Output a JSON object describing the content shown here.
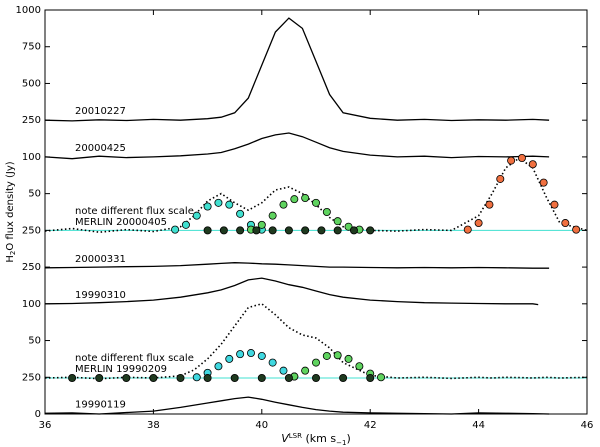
{
  "chart_data": {
    "type": "line",
    "xlabel": [
      "V",
      "LSR",
      " (km s",
      "−1",
      ")"
    ],
    "ylabel": [
      "H",
      "2",
      "O  flux density (Jy)"
    ],
    "xlim": [
      36,
      46
    ],
    "xticks": [
      36,
      38,
      40,
      42,
      44,
      46
    ],
    "ylim": [
      0,
      1100
    ],
    "yticks": [
      0,
      {
        "value": 100,
        "label": "250"
      },
      {
        "value": 200,
        "label": "50"
      },
      {
        "value": 300,
        "label": "100"
      },
      {
        "value": 400,
        "label": "250"
      },
      {
        "value": 500,
        "label": "250"
      },
      {
        "value": 600,
        "label": "50"
      },
      {
        "value": 700,
        "label": "100"
      },
      {
        "value": 800,
        "label": "250"
      },
      {
        "value": 900,
        "label": "500"
      },
      {
        "value": 1000,
        "label": "750"
      },
      {
        "value": 1100,
        "label": "1000"
      }
    ],
    "hlines": [
      {
        "value": 500,
        "color": "#40e0d0"
      },
      {
        "value": 98,
        "color": "#40e0d0"
      }
    ],
    "series": [
      {
        "name": "20010227",
        "color": "#000000",
        "style": "solid",
        "x": [
          36,
          36.5,
          37,
          37.5,
          38,
          38.5,
          39,
          39.25,
          39.5,
          39.75,
          40,
          40.25,
          40.5,
          40.75,
          41,
          41.25,
          41.5,
          42,
          42.5,
          43,
          43.5,
          44,
          44.5,
          45,
          45.3
        ],
        "values": [
          800,
          798,
          801,
          799,
          802,
          800,
          804,
          808,
          820,
          860,
          950,
          1040,
          1078,
          1050,
          960,
          870,
          820,
          805,
          800,
          802,
          799,
          801,
          800,
          802,
          800
        ]
      },
      {
        "name": "20000425",
        "color": "#000000",
        "style": "solid",
        "x": [
          36,
          36.5,
          37,
          37.5,
          38,
          38.5,
          39,
          39.25,
          39.5,
          39.75,
          40,
          40.25,
          40.5,
          40.75,
          41,
          41.25,
          41.5,
          42,
          42.5,
          43,
          43.5,
          44,
          44.5,
          45,
          45.3
        ],
        "values": [
          700,
          695,
          702,
          698,
          700,
          703,
          708,
          712,
          722,
          735,
          750,
          760,
          765,
          755,
          740,
          725,
          715,
          705,
          700,
          702,
          698,
          701,
          700,
          702,
          700
        ]
      },
      {
        "name": "MERLIN 20000405",
        "note": "note different flux scale",
        "color": "#000000",
        "style": "dotted",
        "x": [
          36,
          36.5,
          37,
          37.5,
          38,
          38.5,
          38.75,
          39,
          39.25,
          39.5,
          39.75,
          40,
          40.25,
          40.5,
          40.75,
          41,
          41.25,
          41.5,
          42,
          42.5,
          43,
          43.5,
          44,
          44.25,
          44.5,
          44.75,
          45,
          45.25,
          45.5,
          46
        ],
        "values": [
          498,
          505,
          495,
          502,
          497,
          510,
          540,
          580,
          600,
          575,
          555,
          575,
          610,
          618,
          600,
          570,
          535,
          510,
          500,
          498,
          502,
          500,
          540,
          600,
          670,
          697,
          670,
          590,
          520,
          500
        ]
      },
      {
        "name": "20000331",
        "color": "#000000",
        "style": "solid",
        "x": [
          36,
          36.5,
          37,
          37.5,
          38,
          38.5,
          39,
          39.25,
          39.5,
          39.75,
          40,
          40.25,
          40.5,
          40.75,
          41,
          41.25,
          41.5,
          42,
          42.5,
          43,
          43.5,
          44,
          44.5,
          45,
          45.3
        ],
        "values": [
          398,
          399,
          400,
          401,
          402,
          404,
          408,
          410,
          412,
          411,
          409,
          408,
          406,
          404,
          402,
          400,
          400,
          399,
          398,
          399,
          398,
          399,
          398,
          397,
          397
        ]
      },
      {
        "name": "19990310",
        "color": "#000000",
        "style": "solid",
        "x": [
          36,
          36.5,
          37,
          37.5,
          38,
          38.5,
          39,
          39.25,
          39.5,
          39.75,
          40,
          40.25,
          40.5,
          40.75,
          41,
          41.25,
          41.5,
          42,
          42.5,
          43,
          43.5,
          44,
          44.5,
          45,
          45.1
        ],
        "values": [
          300,
          301,
          303,
          306,
          310,
          318,
          330,
          338,
          350,
          365,
          370,
          362,
          352,
          345,
          335,
          325,
          318,
          310,
          306,
          303,
          302,
          301,
          300,
          300,
          298
        ]
      },
      {
        "name": "MERLIN 19990209",
        "note": "note different flux scale",
        "color": "#000000",
        "style": "dotted",
        "x": [
          36,
          36.5,
          37,
          37.5,
          38,
          38.5,
          38.75,
          39,
          39.25,
          39.5,
          39.75,
          40,
          40.25,
          40.5,
          40.75,
          41,
          41.25,
          41.5,
          42,
          42.5,
          43,
          43.5,
          44,
          44.25,
          44.5,
          44.75,
          45,
          45.25,
          45.5,
          46
        ],
        "values": [
          98,
          100,
          96,
          100,
          98,
          104,
          120,
          150,
          190,
          240,
          290,
          300,
          270,
          235,
          215,
          207,
          180,
          140,
          105,
          98,
          100,
          97,
          100,
          98,
          100,
          99,
          98,
          100,
          98,
          100
        ]
      },
      {
        "name": "19990119",
        "color": "#000000",
        "style": "solid",
        "x": [
          36,
          36.5,
          37,
          37.5,
          38,
          38.5,
          39,
          39.25,
          39.5,
          39.75,
          40,
          40.25,
          40.5,
          40.75,
          41,
          41.25,
          41.5,
          42,
          42.5,
          43,
          43.5,
          44,
          44.5,
          45,
          45.3
        ],
        "values": [
          2,
          3,
          0,
          4,
          8,
          18,
          30,
          36,
          42,
          46,
          40,
          32,
          25,
          18,
          12,
          8,
          5,
          3,
          2,
          1,
          0,
          3,
          2,
          1,
          0
        ]
      },
      {
        "color": "#40e0d0",
        "style": "markers",
        "x": [
          38.4,
          38.6,
          38.8,
          39.0,
          39.2,
          39.4,
          39.6,
          39.8,
          40.0
        ],
        "values": [
          502,
          515,
          540,
          565,
          575,
          570,
          545,
          515,
          502
        ]
      },
      {
        "color": "#5fd35f",
        "style": "markers",
        "x": [
          39.8,
          40.0,
          40.2,
          40.4,
          40.6,
          40.8,
          41.0,
          41.2,
          41.4,
          41.6,
          41.8
        ],
        "values": [
          502,
          515,
          540,
          570,
          585,
          588,
          575,
          550,
          525,
          510,
          502
        ]
      },
      {
        "color": "#1f3a1f",
        "style": "markers",
        "x": [
          39.0,
          39.3,
          39.6,
          39.9,
          40.2,
          40.5,
          40.8,
          41.1,
          41.4,
          41.7,
          42.0
        ],
        "values": [
          500,
          500,
          500,
          500,
          500,
          500,
          500,
          500,
          500,
          500,
          500
        ]
      },
      {
        "color": "#f07040",
        "style": "markers",
        "x": [
          43.8,
          44.0,
          44.2,
          44.4,
          44.6,
          44.8,
          45.0,
          45.2,
          45.4,
          45.6,
          45.8
        ],
        "values": [
          502,
          520,
          570,
          640,
          690,
          697,
          680,
          630,
          570,
          520,
          502
        ]
      },
      {
        "color": "#40d8e0",
        "style": "markers",
        "x": [
          38.8,
          39.0,
          39.2,
          39.4,
          39.6,
          39.8,
          40.0,
          40.2,
          40.4,
          40.6
        ],
        "values": [
          100,
          112,
          130,
          150,
          163,
          166,
          158,
          140,
          118,
          102
        ]
      },
      {
        "color": "#5fd35f",
        "style": "markers",
        "x": [
          40.6,
          40.8,
          41.0,
          41.2,
          41.4,
          41.6,
          41.8,
          42.0,
          42.2
        ],
        "values": [
          102,
          118,
          140,
          158,
          160,
          150,
          130,
          110,
          100
        ]
      },
      {
        "color": "#1f3a1f",
        "style": "markers",
        "x": [
          36.5,
          37.0,
          37.5,
          38.0,
          38.5,
          39.0,
          39.5,
          40.0,
          40.5,
          41.0,
          41.5,
          42.0
        ],
        "values": [
          98,
          98,
          98,
          98,
          98,
          98,
          98,
          98,
          98,
          98,
          98,
          98
        ]
      }
    ]
  }
}
